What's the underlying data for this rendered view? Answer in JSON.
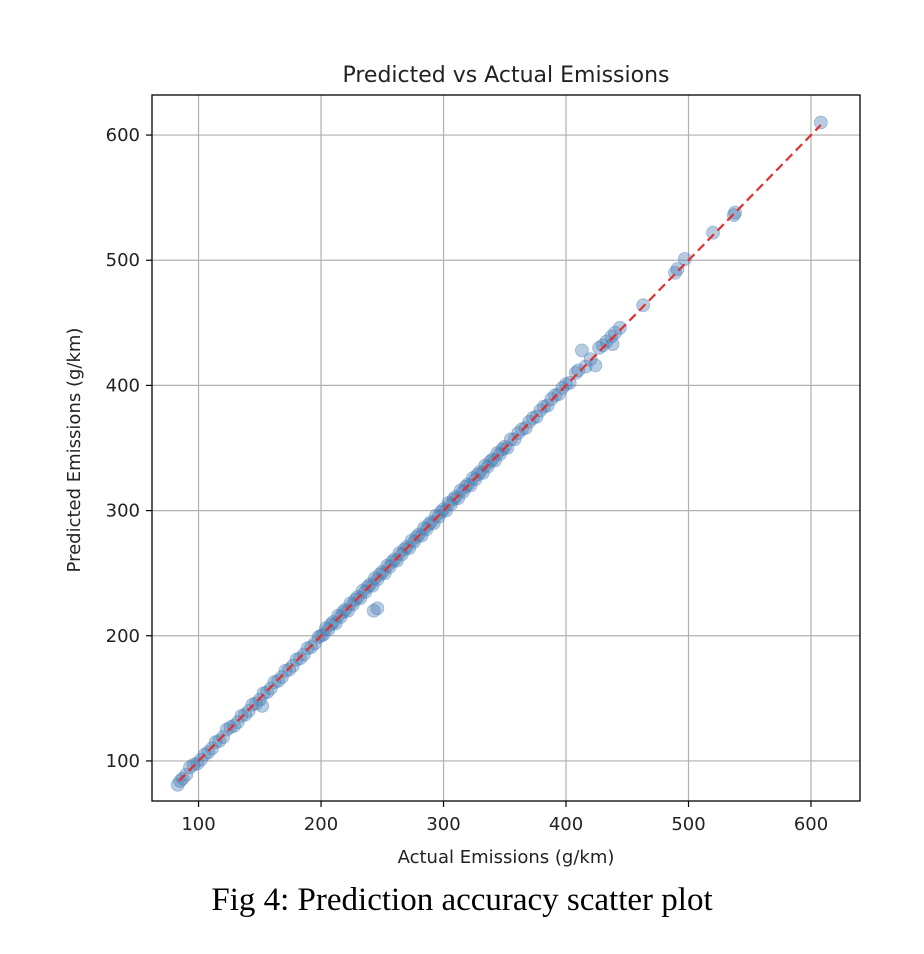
{
  "figure": {
    "caption": "Fig 4: Prediction accuracy scatter plot"
  },
  "chart_data": {
    "type": "scatter",
    "title": "Predicted vs Actual Emissions",
    "xlabel": "Actual Emissions (g/km)",
    "ylabel": "Predicted Emissions (g/km)",
    "xlim": [
      62,
      640
    ],
    "ylim": [
      68,
      632
    ],
    "xticks": [
      100,
      200,
      300,
      400,
      500,
      600
    ],
    "yticks": [
      100,
      200,
      300,
      400,
      500,
      600
    ],
    "grid": true,
    "colors": {
      "points": "#4a7fb5",
      "reference_line": "#e03030",
      "grid": "#b0b0b0",
      "frame": "#000000"
    },
    "reference_line": {
      "from": [
        84,
        84
      ],
      "to": [
        608,
        608
      ],
      "style": "dashed"
    },
    "points": [
      [
        83,
        81
      ],
      [
        85,
        84
      ],
      [
        87,
        86
      ],
      [
        90,
        89
      ],
      [
        93,
        95
      ],
      [
        96,
        97
      ],
      [
        99,
        98
      ],
      [
        102,
        101
      ],
      [
        105,
        105
      ],
      [
        108,
        107
      ],
      [
        111,
        110
      ],
      [
        114,
        115
      ],
      [
        117,
        116
      ],
      [
        120,
        119
      ],
      [
        123,
        125
      ],
      [
        126,
        127
      ],
      [
        129,
        128
      ],
      [
        132,
        131
      ],
      [
        135,
        136
      ],
      [
        138,
        137
      ],
      [
        141,
        140
      ],
      [
        144,
        145
      ],
      [
        147,
        146
      ],
      [
        150,
        149
      ],
      [
        152,
        144
      ],
      [
        153,
        154
      ],
      [
        156,
        155
      ],
      [
        159,
        158
      ],
      [
        162,
        163
      ],
      [
        165,
        164
      ],
      [
        168,
        167
      ],
      [
        171,
        172
      ],
      [
        174,
        173
      ],
      [
        177,
        176
      ],
      [
        180,
        181
      ],
      [
        183,
        182
      ],
      [
        186,
        185
      ],
      [
        189,
        190
      ],
      [
        192,
        191
      ],
      [
        195,
        194
      ],
      [
        198,
        199
      ],
      [
        200,
        200
      ],
      [
        202,
        201
      ],
      [
        204,
        206
      ],
      [
        206,
        205
      ],
      [
        208,
        209
      ],
      [
        210,
        211
      ],
      [
        212,
        210
      ],
      [
        214,
        216
      ],
      [
        216,
        215
      ],
      [
        218,
        219
      ],
      [
        220,
        221
      ],
      [
        222,
        220
      ],
      [
        224,
        226
      ],
      [
        226,
        225
      ],
      [
        228,
        229
      ],
      [
        230,
        231
      ],
      [
        232,
        230
      ],
      [
        234,
        236
      ],
      [
        236,
        235
      ],
      [
        238,
        239
      ],
      [
        240,
        241
      ],
      [
        242,
        240
      ],
      [
        243,
        220
      ],
      [
        246,
        222
      ],
      [
        244,
        246
      ],
      [
        246,
        245
      ],
      [
        248,
        249
      ],
      [
        250,
        251
      ],
      [
        252,
        250
      ],
      [
        254,
        256
      ],
      [
        256,
        255
      ],
      [
        258,
        259
      ],
      [
        260,
        261
      ],
      [
        262,
        260
      ],
      [
        264,
        266
      ],
      [
        266,
        265
      ],
      [
        268,
        269
      ],
      [
        270,
        271
      ],
      [
        272,
        270
      ],
      [
        274,
        276
      ],
      [
        276,
        275
      ],
      [
        278,
        279
      ],
      [
        280,
        281
      ],
      [
        282,
        280
      ],
      [
        284,
        286
      ],
      [
        286,
        285
      ],
      [
        288,
        289
      ],
      [
        290,
        291
      ],
      [
        292,
        290
      ],
      [
        294,
        296
      ],
      [
        296,
        295
      ],
      [
        298,
        299
      ],
      [
        300,
        301
      ],
      [
        302,
        300
      ],
      [
        304,
        306
      ],
      [
        306,
        305
      ],
      [
        308,
        309
      ],
      [
        310,
        311
      ],
      [
        312,
        310
      ],
      [
        314,
        316
      ],
      [
        316,
        315
      ],
      [
        318,
        319
      ],
      [
        320,
        321
      ],
      [
        322,
        320
      ],
      [
        324,
        326
      ],
      [
        326,
        325
      ],
      [
        328,
        329
      ],
      [
        330,
        331
      ],
      [
        332,
        330
      ],
      [
        334,
        336
      ],
      [
        336,
        335
      ],
      [
        338,
        339
      ],
      [
        340,
        341
      ],
      [
        342,
        340
      ],
      [
        344,
        346
      ],
      [
        346,
        345
      ],
      [
        348,
        349
      ],
      [
        350,
        351
      ],
      [
        352,
        350
      ],
      [
        355,
        357
      ],
      [
        358,
        357
      ],
      [
        361,
        362
      ],
      [
        364,
        365
      ],
      [
        367,
        366
      ],
      [
        370,
        371
      ],
      [
        373,
        374
      ],
      [
        376,
        375
      ],
      [
        379,
        380
      ],
      [
        382,
        383
      ],
      [
        385,
        384
      ],
      [
        388,
        389
      ],
      [
        391,
        392
      ],
      [
        394,
        393
      ],
      [
        397,
        398
      ],
      [
        400,
        401
      ],
      [
        403,
        402
      ],
      [
        408,
        410
      ],
      [
        410,
        412
      ],
      [
        413,
        428
      ],
      [
        416,
        415
      ],
      [
        420,
        421
      ],
      [
        424,
        416
      ],
      [
        427,
        430
      ],
      [
        430,
        432
      ],
      [
        433,
        435
      ],
      [
        437,
        439
      ],
      [
        438,
        433
      ],
      [
        440,
        442
      ],
      [
        444,
        446
      ],
      [
        463,
        464
      ],
      [
        489,
        490
      ],
      [
        491,
        493
      ],
      [
        497,
        501
      ],
      [
        520,
        522
      ],
      [
        537,
        536
      ],
      [
        538,
        538
      ],
      [
        608,
        610
      ]
    ]
  }
}
